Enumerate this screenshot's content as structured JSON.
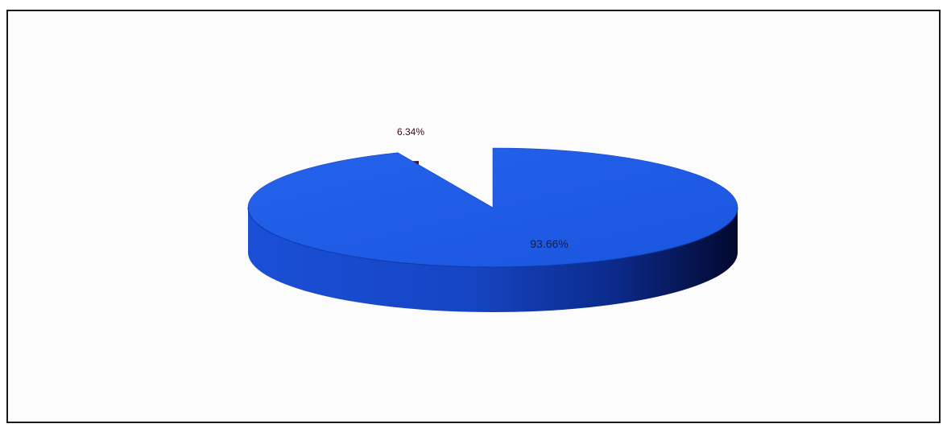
{
  "chart_data": {
    "type": "pie",
    "style": "3d",
    "categories": [
      "",
      ""
    ],
    "values": [
      93.66,
      6.34
    ],
    "data_labels": [
      "93.66%",
      "6.34%"
    ],
    "title": "",
    "legend": "none",
    "colors": {
      "main_slice": "#1f5ce8",
      "main_slice_side": "#0d2f9e",
      "main_slice_side_dark": "#050b3a",
      "exploded_slice": "#4a0a16",
      "exploded_slice_side": "#1a0208"
    }
  }
}
